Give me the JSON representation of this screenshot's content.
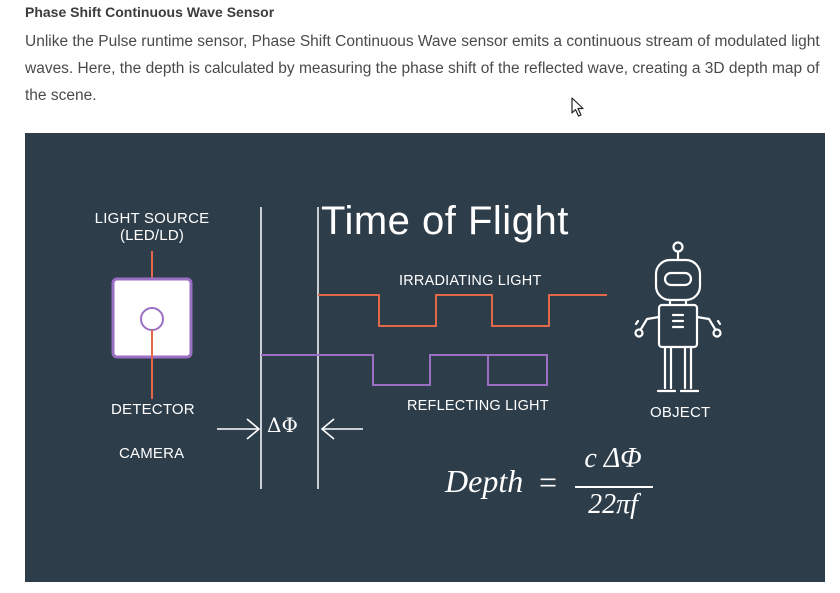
{
  "article": {
    "section_title": "Phase Shift Continuous Wave Sensor",
    "intro": "Unlike the Pulse runtime sensor, Phase Shift Continuous Wave sensor emits a continuous stream of modulated light waves. Here, the depth is calculated by measuring the phase shift of the reflected wave, creating a 3D depth map of the scene."
  },
  "figure": {
    "title": "Time of Flight",
    "light_source_line1": "LIGHT SOURCE",
    "light_source_line2": "(LED/LD)",
    "detector": "DETECTOR",
    "camera": "CAMERA",
    "irradiating": "IRRADIATING LIGHT",
    "reflecting": "REFLECTING LIGHT",
    "object": "OBJECT",
    "phase_symbol": "ΔΦ",
    "equation": {
      "lhs": "Depth",
      "equals": "=",
      "numerator": "c ΔΦ",
      "denominator": "22πf"
    },
    "colors": {
      "background": "#2e3d4a",
      "irradiating_wave": "#e2684a",
      "reflecting_wave": "#9b6fc4",
      "lines": "#ffffff"
    }
  },
  "icons": {
    "cursor": "mouse-pointer-icon",
    "robot": "robot-icon",
    "camera_box": "camera-sensor-icon"
  }
}
